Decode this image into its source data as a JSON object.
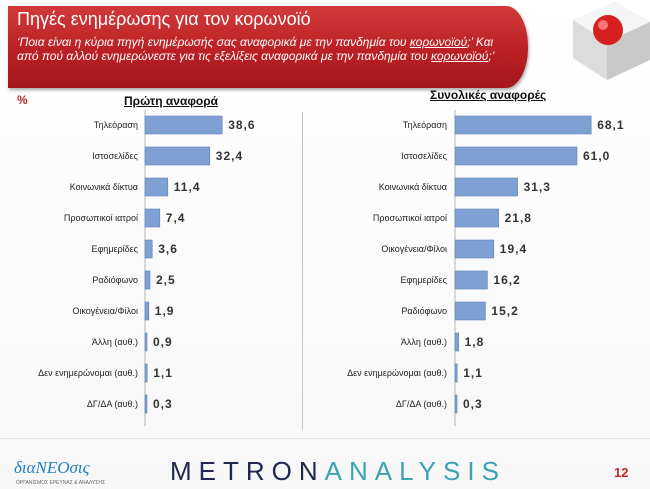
{
  "header": {
    "title": "Πηγές ενημέρωσης για τον κορωνοϊό",
    "subtitle_part1": "‘Ποια είναι η κύρια πηγή ενημέρωσής σας αναφορικά με την πανδημία του ",
    "subtitle_underlined1": "κορωνοϊού",
    "subtitle_part2": ";’ Και από πού αλλού ενημερώνεστε για τις εξελίξεις αναφορικά με την πανδημία του ",
    "subtitle_underlined2": "κορωνοϊού",
    "subtitle_part3": ";’"
  },
  "percent_sign": "%",
  "colors": {
    "accent": "#c0282c",
    "bar": "#7fa0d2",
    "bar_edge": "#5f82b8"
  },
  "chart_data": [
    {
      "type": "bar",
      "orientation": "horizontal",
      "title": "Πρώτη αναφορά",
      "categories": [
        "Τηλεόραση",
        "Ιστοσελίδες",
        "Κοινωνικά δίκτυα",
        "Προσωπικοί ιατροί",
        "Εφημερίδες",
        "Ραδιόφωνο",
        "Οικογένεια/Φίλοι",
        "Άλλη (αυθ.)",
        "Δεν ενημερώνομαι (αυθ.)",
        "ΔΓ/ΔΑ (αυθ.)"
      ],
      "values": [
        38.6,
        32.4,
        11.4,
        7.4,
        3.6,
        2.5,
        1.9,
        0.9,
        1.1,
        0.3
      ],
      "labels": [
        "38,6",
        "32,4",
        "11,4",
        "7,4",
        "3,6",
        "2,5",
        "1,9",
        "0,9",
        "1,1",
        "0,3"
      ],
      "xlim": [
        0,
        100
      ]
    },
    {
      "type": "bar",
      "orientation": "horizontal",
      "title": "Συνολικές αναφορές",
      "categories": [
        "Τηλεόραση",
        "Ιστοσελίδες",
        "Κοινωνικά δίκτυα",
        "Προσωπικοί ιατροί",
        "Οικογένεια/Φίλοι",
        "Εφημερίδες",
        "Ραδιόφωνο",
        "Άλλη (αυθ.)",
        "Δεν ενημερώνομαι (αυθ.)",
        "ΔΓ/ΔΑ (αυθ.)"
      ],
      "values": [
        68.1,
        61.0,
        31.3,
        21.8,
        19.4,
        16.2,
        15.2,
        1.8,
        1.1,
        0.3
      ],
      "labels": [
        "68,1",
        "61,0",
        "31,3",
        "21,8",
        "19,4",
        "16,2",
        "15,2",
        "1,8",
        "1,1",
        "0,3"
      ],
      "xlim": [
        0,
        100
      ]
    }
  ],
  "footer": {
    "logo_left_main": "διαΝΕΟσις",
    "logo_left_sub": "ΟΡΓΑΝΙΣΜΟΣ ΕΡΕΥΝΑΣ & ΑΝΑΛΥΣΗΣ",
    "logo_main_a": "METRON",
    "logo_main_b": "ANALYSIS",
    "page_number": "12"
  }
}
